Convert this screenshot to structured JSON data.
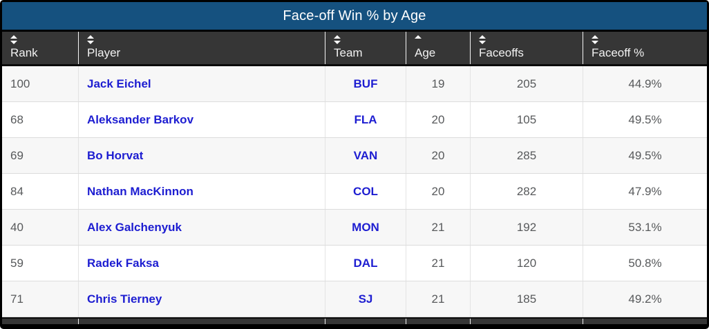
{
  "title": "Face-off Win % by Age",
  "colors": {
    "title_bar_blue": "#15517f",
    "header_dark": "#363636",
    "row_alt_gray": "#f7f7f7",
    "link_blue": "#1d1dd1",
    "value_gray": "#57595b"
  },
  "icons": {
    "sort_both": "sort-up-down-arrows",
    "sort_asc": "sort-up-arrow"
  },
  "columns": [
    {
      "key": "rank",
      "label": "Rank",
      "sort": "both",
      "align": "left"
    },
    {
      "key": "player",
      "label": "Player",
      "sort": "both",
      "align": "left"
    },
    {
      "key": "team",
      "label": "Team",
      "sort": "both",
      "align": "center"
    },
    {
      "key": "age",
      "label": "Age",
      "sort": "asc",
      "align": "center"
    },
    {
      "key": "faceoffs",
      "label": "Faceoffs",
      "sort": "both",
      "align": "center"
    },
    {
      "key": "faceoff_pct",
      "label": "Faceoff %",
      "sort": "both",
      "align": "center"
    }
  ],
  "rows": [
    {
      "rank": "100",
      "player": "Jack Eichel",
      "team": "BUF",
      "age": "19",
      "faceoffs": "205",
      "faceoff_pct": "44.9%"
    },
    {
      "rank": "68",
      "player": "Aleksander Barkov",
      "team": "FLA",
      "age": "20",
      "faceoffs": "105",
      "faceoff_pct": "49.5%"
    },
    {
      "rank": "69",
      "player": "Bo Horvat",
      "team": "VAN",
      "age": "20",
      "faceoffs": "285",
      "faceoff_pct": "49.5%"
    },
    {
      "rank": "84",
      "player": "Nathan MacKinnon",
      "team": "COL",
      "age": "20",
      "faceoffs": "282",
      "faceoff_pct": "47.9%"
    },
    {
      "rank": "40",
      "player": "Alex Galchenyuk",
      "team": "MON",
      "age": "21",
      "faceoffs": "192",
      "faceoff_pct": "53.1%"
    },
    {
      "rank": "59",
      "player": "Radek Faksa",
      "team": "DAL",
      "age": "21",
      "faceoffs": "120",
      "faceoff_pct": "50.8%"
    },
    {
      "rank": "71",
      "player": "Chris Tierney",
      "team": "SJ",
      "age": "21",
      "faceoffs": "185",
      "faceoff_pct": "49.2%"
    }
  ]
}
